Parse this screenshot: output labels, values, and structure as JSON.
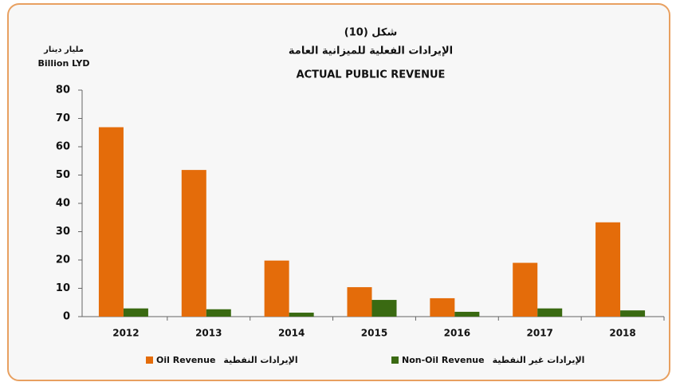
{
  "chart_data": {
    "type": "bar",
    "title_ar_figure": "شكل (10)",
    "title_ar": "الإيرادات الفعلية للميزانية العامة",
    "title": "ACTUAL PUBLIC REVENUE",
    "y_label_ar": "مليار دينار",
    "y_label": "Billion LYD",
    "categories": [
      "2012",
      "2013",
      "2014",
      "2015",
      "2016",
      "2017",
      "2018"
    ],
    "series": [
      {
        "name": "Oil Revenue",
        "name_ar": "الإيرادات النفطية",
        "color": "#e46c0a",
        "values": [
          66.9,
          51.8,
          19.8,
          10.4,
          6.5,
          19.0,
          33.3
        ]
      },
      {
        "name": "Non-Oil Revenue",
        "name_ar": "الإيرادات غير النفطية",
        "color": "#3a6a12",
        "values": [
          2.9,
          2.6,
          1.4,
          5.9,
          1.7,
          2.9,
          2.2
        ]
      }
    ],
    "ylim": [
      0,
      80
    ],
    "yticks": [
      0,
      10,
      20,
      30,
      40,
      50,
      60,
      70,
      80
    ],
    "grid": false,
    "legend": "bottom"
  }
}
